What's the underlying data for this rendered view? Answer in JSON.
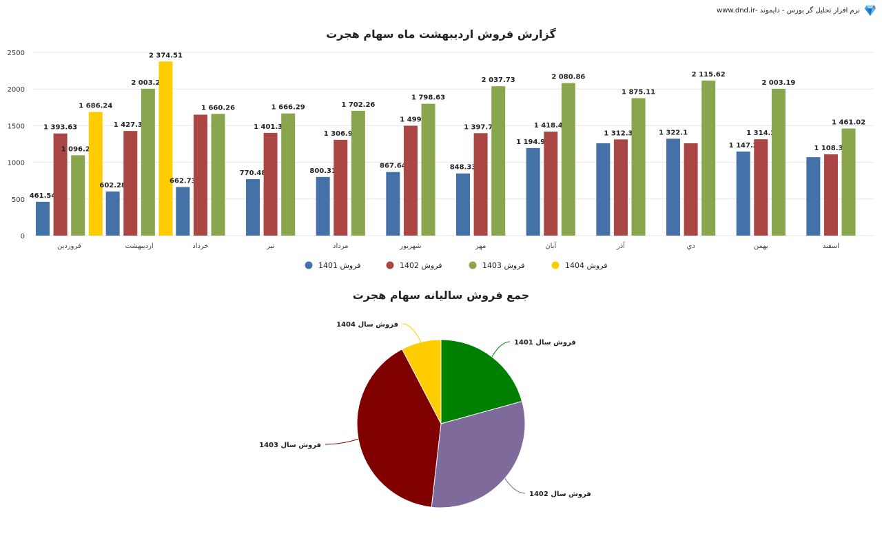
{
  "brand": {
    "text": "نرم افزار تحلیل گر بورس - دایموند -www.dnd.ir",
    "icon": "diamond-logo-icon"
  },
  "chart_data": [
    {
      "type": "bar",
      "title": "گزارش فروش اردیبهشت ماه سهام هجرت",
      "xlabel": "",
      "ylabel": "",
      "ylim": [
        0,
        2500
      ],
      "yticks": [
        "0",
        "500",
        "1000",
        "1500",
        "2000",
        "2500"
      ],
      "grid": true,
      "legend_position": "bottom",
      "categories": [
        "فروردین",
        "اردیبهشت",
        "خرداد",
        "تیر",
        "مرداد",
        "شهریور",
        "مهر",
        "آبان",
        "آذر",
        "دي",
        "بهمن",
        "اسفند"
      ],
      "series": [
        {
          "name": "فروش 1401",
          "color": "#4472a8",
          "values": [
            461.54,
            602.28,
            662.73,
            770.48,
            800.31,
            867.64,
            848.33,
            1194.96,
            1260,
            1322.1,
            1147.2,
            1070
          ],
          "labels": [
            "461.54",
            "602.28",
            "662.73",
            "770.48",
            "800.31",
            "867.64",
            "848.33",
            "1 194.96",
            "",
            "1 322.1",
            "1 147.2",
            ""
          ]
        },
        {
          "name": "فروش 1402",
          "color": "#aa4643",
          "values": [
            1393.63,
            1427.35,
            1650,
            1401.37,
            1306.95,
            1499,
            1397.76,
            1418.45,
            1312.39,
            1260,
            1314.2,
            1108.39
          ],
          "labels": [
            "1 393.63",
            "1 427.35",
            "",
            "1 401.37",
            "1 306.95",
            "1 499",
            "1 397.76",
            "1 418.45",
            "1 312.39",
            "",
            "1 314.2",
            "1 108.39"
          ]
        },
        {
          "name": "فروش 1403",
          "color": "#89a54e",
          "values": [
            1096.27,
            2003.27,
            1660.26,
            1666.29,
            1702.26,
            1798.63,
            2037.73,
            2080.86,
            1875.11,
            2115.62,
            2003.19,
            1461.02
          ],
          "labels": [
            "1 096.27",
            "2 003.27",
            "1 660.26",
            "1 666.29",
            "1 702.26",
            "1 798.63",
            "2 037.73",
            "2 080.86",
            "1 875.11",
            "2 115.62",
            "2 003.19",
            "1 461.02"
          ]
        },
        {
          "name": "فروش 1404",
          "color": "#ffcc00",
          "values": [
            1686.24,
            2374.51,
            null,
            null,
            null,
            null,
            null,
            null,
            null,
            null,
            null,
            null
          ],
          "labels": [
            "1 686.24",
            "2 374.51",
            "",
            "",
            "",
            "",
            "",
            "",
            "",
            "",
            "",
            ""
          ]
        }
      ]
    },
    {
      "type": "pie",
      "title": "جمع فروش سالیانه سهام هجرت",
      "slices": [
        {
          "name": "فروش سال 1401",
          "value": 10989,
          "color": "#008000"
        },
        {
          "name": "فروش سال 1402",
          "value": 16490,
          "color": "#7f6a9c"
        },
        {
          "name": "فروش سال 1403",
          "value": 21500,
          "color": "#800000"
        },
        {
          "name": "فروش سال 1404",
          "value": 4060,
          "color": "#ffcc00"
        }
      ]
    }
  ]
}
